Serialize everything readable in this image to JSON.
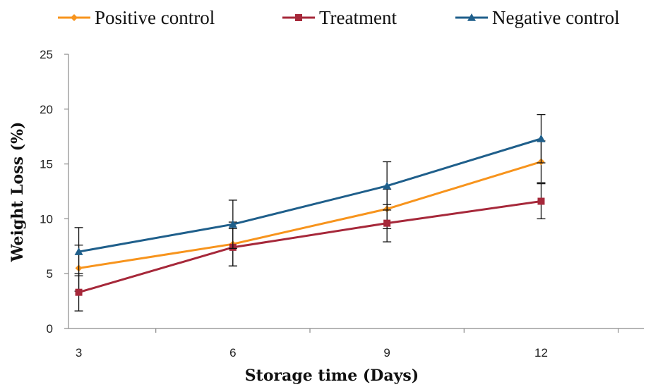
{
  "chart_data": {
    "type": "line",
    "title": "",
    "xlabel": "Storage time (Days)",
    "ylabel": "Weight Loss (%)",
    "x": [
      3,
      6,
      9,
      12
    ],
    "x_tick_labels": [
      "3",
      "6",
      "9",
      "12"
    ],
    "y_tick_labels": [
      "0",
      "5",
      "10",
      "15",
      "20",
      "25"
    ],
    "ylim": [
      0,
      25
    ],
    "grid": false,
    "legend_position": "top",
    "series": [
      {
        "name": "Positive control",
        "values": [
          5.5,
          7.7,
          10.9,
          15.2
        ],
        "errors": [
          2.1,
          2.0,
          1.8,
          1.9
        ],
        "color": "#f7941d",
        "marker": "diamond"
      },
      {
        "name": "Treatment",
        "values": [
          3.3,
          7.4,
          9.6,
          11.6
        ],
        "errors": [
          1.7,
          1.7,
          1.7,
          1.6
        ],
        "color": "#a6283a",
        "marker": "square"
      },
      {
        "name": "Negative control",
        "values": [
          7.0,
          9.5,
          13.0,
          17.3
        ],
        "errors": [
          2.2,
          2.2,
          2.2,
          2.2
        ],
        "color": "#1f5f8b",
        "marker": "triangle"
      }
    ]
  }
}
